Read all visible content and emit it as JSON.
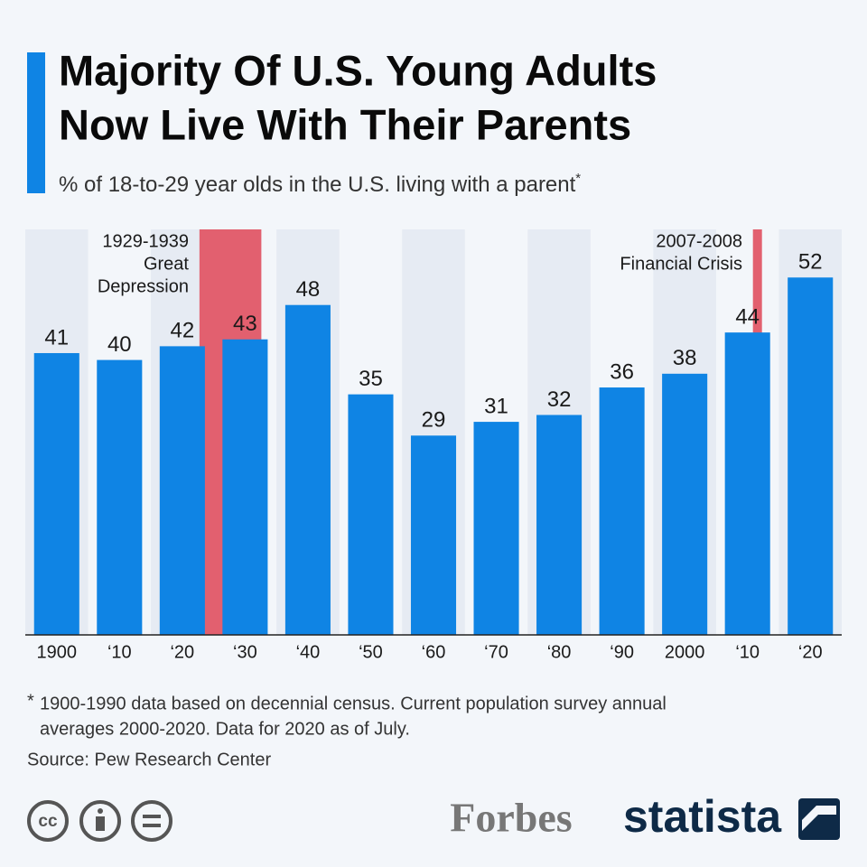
{
  "chart_data": {
    "type": "bar",
    "title": [
      "Majority Of U.S. Young Adults",
      "Now Live With Their Parents"
    ],
    "subtitle": "% of 18-to-29 year olds in the U.S. living with a parent",
    "subtitle_mark": "*",
    "categories": [
      "1900",
      "‘10",
      "‘20",
      "‘30",
      "‘40",
      "‘50",
      "‘60",
      "‘70",
      "‘80",
      "‘90",
      "2000",
      "‘10",
      "‘20"
    ],
    "values": [
      41,
      40,
      42,
      43,
      48,
      35,
      29,
      31,
      32,
      36,
      38,
      44,
      52
    ],
    "color": "#0f84e4",
    "ylim": [
      0,
      59
    ],
    "annotations": [
      {
        "lines": [
          "1929-1939",
          "Great",
          "Depression"
        ],
        "color": "#e2606f"
      },
      {
        "lines": [
          "2007-2008",
          "Financial Crisis"
        ],
        "color": "#e2606f"
      }
    ],
    "footnote_mark": "*",
    "footnote": [
      "1900-1990 data based on decennial census. Current population survey annual",
      "averages 2000-2020. Data for 2020 as of July."
    ],
    "source": "Source: Pew Research Center"
  },
  "branding": {
    "cc": "cc",
    "forbes": "Forbes",
    "statista": "statista"
  }
}
